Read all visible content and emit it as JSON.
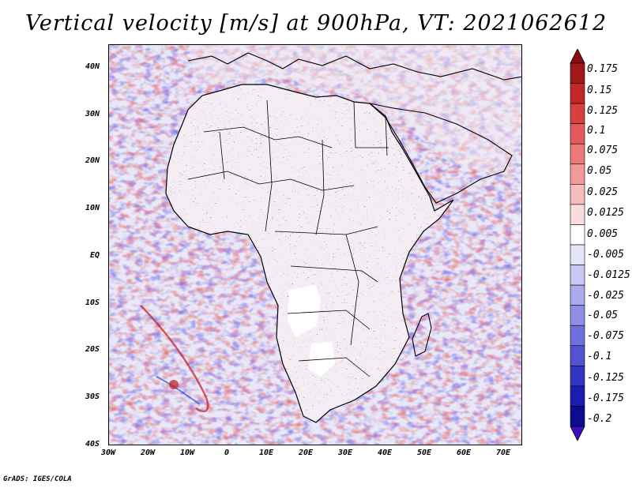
{
  "title": "Vertical velocity [m/s] at 900hPa, VT: 2021062612",
  "credit": "GrADS: IGES/COLA",
  "map": {
    "region": "Africa",
    "lon_range": [
      -30,
      75
    ],
    "lat_range": [
      -40,
      45
    ],
    "y_ticks": [
      "40N",
      "30N",
      "20N",
      "10N",
      "EQ",
      "10S",
      "20S",
      "30S",
      "40S"
    ],
    "x_ticks": [
      "30W",
      "20W",
      "10W",
      "0",
      "10E",
      "20E",
      "30E",
      "40E",
      "50E",
      "60E",
      "70E"
    ],
    "ocean_base_color": "#d9d9f4",
    "positive_color": "#e06060",
    "negative_color": "#6060e0"
  },
  "colorbar": {
    "labels": [
      "0.175",
      "0.15",
      "0.125",
      "0.1",
      "0.075",
      "0.05",
      "0.025",
      "0.0125",
      "0.005",
      "-0.005",
      "-0.0125",
      "-0.025",
      "-0.05",
      "-0.075",
      "-0.1",
      "-0.125",
      "-0.175",
      "-0.2"
    ],
    "colors": [
      "#a01818",
      "#c02828",
      "#d84040",
      "#e45a5a",
      "#ec7878",
      "#f29a9a",
      "#f7bcbc",
      "#fbdcdc",
      "#ffffff",
      "#e4e4fa",
      "#c8c8f4",
      "#ababed",
      "#8e8ee6",
      "#7070dd",
      "#5252d2",
      "#3434c4",
      "#1c1cb0",
      "#0c0c90"
    ],
    "top_arrow_color": "#8a1010",
    "bottom_arrow_color": "#3a10c0"
  }
}
